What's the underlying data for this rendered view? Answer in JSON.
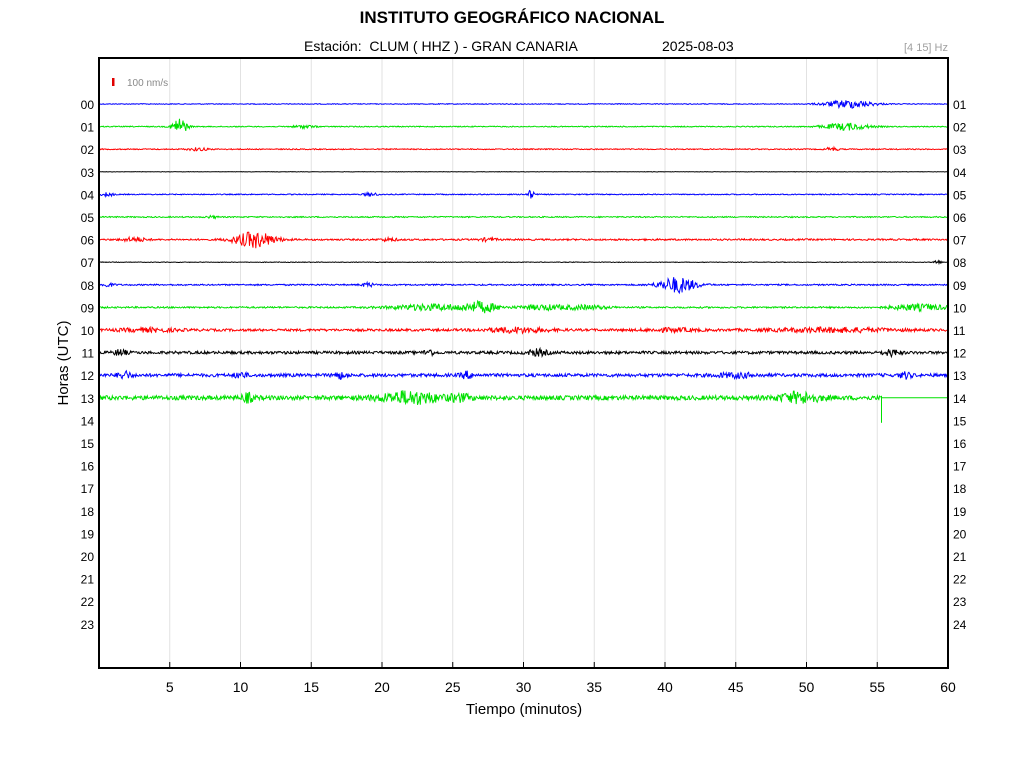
{
  "header": {
    "title": "INSTITUTO GEOGRÁFICO NACIONAL",
    "station_label": "Estación:",
    "station": "CLUM ( HHZ ) - GRAN CANARIA",
    "date": "2025-08-03",
    "filter": "[4 15] Hz"
  },
  "chart_data": {
    "type": "line",
    "xlabel": "Tiempo (minutos)",
    "ylabel": "Horas (UTC)",
    "xlim": [
      0,
      60
    ],
    "x_ticks": [
      5,
      10,
      15,
      20,
      25,
      30,
      35,
      40,
      45,
      50,
      55,
      60
    ],
    "grid": "vertical",
    "scale_bar": {
      "label": "100 nm/s",
      "color": "#e00000"
    },
    "left_labels": [
      "00",
      "01",
      "02",
      "03",
      "04",
      "05",
      "06",
      "07",
      "08",
      "09",
      "10",
      "11",
      "12",
      "13",
      "14",
      "15",
      "16",
      "17",
      "18",
      "19",
      "20",
      "21",
      "22",
      "23"
    ],
    "right_labels": [
      "01",
      "02",
      "03",
      "04",
      "05",
      "06",
      "07",
      "08",
      "09",
      "10",
      "11",
      "12",
      "13",
      "14",
      "15",
      "16",
      "17",
      "18",
      "19",
      "20",
      "21",
      "22",
      "23",
      "24"
    ],
    "trace_colors": [
      "#0000ff",
      "#00e000",
      "#ff0000",
      "#000000"
    ],
    "traces": [
      {
        "hour": "00",
        "color": "#0000ff",
        "noise": 0.4,
        "end_minute": 60,
        "events": [
          [
            53,
            4,
            1.2
          ]
        ]
      },
      {
        "hour": "01",
        "color": "#00e000",
        "noise": 0.5,
        "end_minute": 60,
        "events": [
          [
            5.7,
            9,
            0.35
          ],
          [
            14.5,
            1.5,
            0.5
          ],
          [
            52.8,
            3.5,
            1.1
          ]
        ]
      },
      {
        "hour": "02",
        "color": "#ff0000",
        "noise": 0.5,
        "end_minute": 60,
        "events": [
          [
            7,
            1.5,
            0.5
          ],
          [
            51.8,
            2,
            0.3
          ]
        ]
      },
      {
        "hour": "03",
        "color": "#000000",
        "noise": 0.2,
        "end_minute": 60,
        "events": []
      },
      {
        "hour": "04",
        "color": "#0000ff",
        "noise": 0.5,
        "end_minute": 60,
        "events": [
          [
            0.6,
            2,
            0.3
          ],
          [
            19.2,
            2,
            0.3
          ],
          [
            30.5,
            4,
            0.2
          ]
        ]
      },
      {
        "hour": "05",
        "color": "#00e000",
        "noise": 0.6,
        "end_minute": 60,
        "events": [
          [
            8,
            1.2,
            0.3
          ]
        ]
      },
      {
        "hour": "06",
        "color": "#ff0000",
        "noise": 0.8,
        "end_minute": 60,
        "events": [
          [
            2.5,
            2,
            0.6
          ],
          [
            11,
            8,
            1.0
          ],
          [
            20.5,
            1.5,
            0.4
          ],
          [
            27.5,
            1.5,
            0.4
          ]
        ]
      },
      {
        "hour": "07",
        "color": "#000000",
        "noise": 0.3,
        "end_minute": 60,
        "events": [
          [
            59.2,
            2,
            0.2
          ]
        ]
      },
      {
        "hour": "08",
        "color": "#0000ff",
        "noise": 0.7,
        "end_minute": 60,
        "events": [
          [
            0.6,
            2,
            0.3
          ],
          [
            19,
            2,
            0.3
          ],
          [
            40.9,
            8,
            0.9
          ]
        ]
      },
      {
        "hour": "09",
        "color": "#00e000",
        "noise": 0.8,
        "end_minute": 60,
        "events": [
          [
            23.5,
            3,
            2.0
          ],
          [
            27,
            5,
            0.8
          ],
          [
            31.5,
            2.5,
            1.2
          ],
          [
            34.5,
            2,
            1.0
          ],
          [
            58,
            3,
            1.4
          ]
        ]
      },
      {
        "hour": "10",
        "color": "#ff0000",
        "noise": 1.2,
        "end_minute": 60,
        "events": [
          [
            3.5,
            1.5,
            1.5
          ],
          [
            29.5,
            2.5,
            1.5
          ],
          [
            40.5,
            1.5,
            1.2
          ],
          [
            52,
            2,
            3.0
          ]
        ]
      },
      {
        "hour": "11",
        "color": "#000000",
        "noise": 1.4,
        "end_minute": 60,
        "events": [
          [
            1.5,
            3,
            0.3
          ],
          [
            23.3,
            4,
            0.2
          ],
          [
            31,
            3,
            0.5
          ],
          [
            56,
            3,
            0.4
          ]
        ]
      },
      {
        "hour": "12",
        "color": "#0000ff",
        "noise": 1.6,
        "end_minute": 60,
        "events": [
          [
            1.8,
            4,
            0.3
          ],
          [
            10,
            3,
            0.3
          ],
          [
            17,
            3,
            0.3
          ],
          [
            26,
            3,
            0.3
          ],
          [
            45,
            2,
            1.0
          ],
          [
            57,
            3,
            0.3
          ]
        ]
      },
      {
        "hour": "13",
        "color": "#00e000",
        "noise": 2.2,
        "end_minute": 55.3,
        "events": [
          [
            10.5,
            4,
            0.3
          ],
          [
            22,
            6,
            1.5
          ],
          [
            25.5,
            3,
            0.5
          ],
          [
            49.5,
            5,
            1.0
          ]
        ]
      }
    ]
  }
}
